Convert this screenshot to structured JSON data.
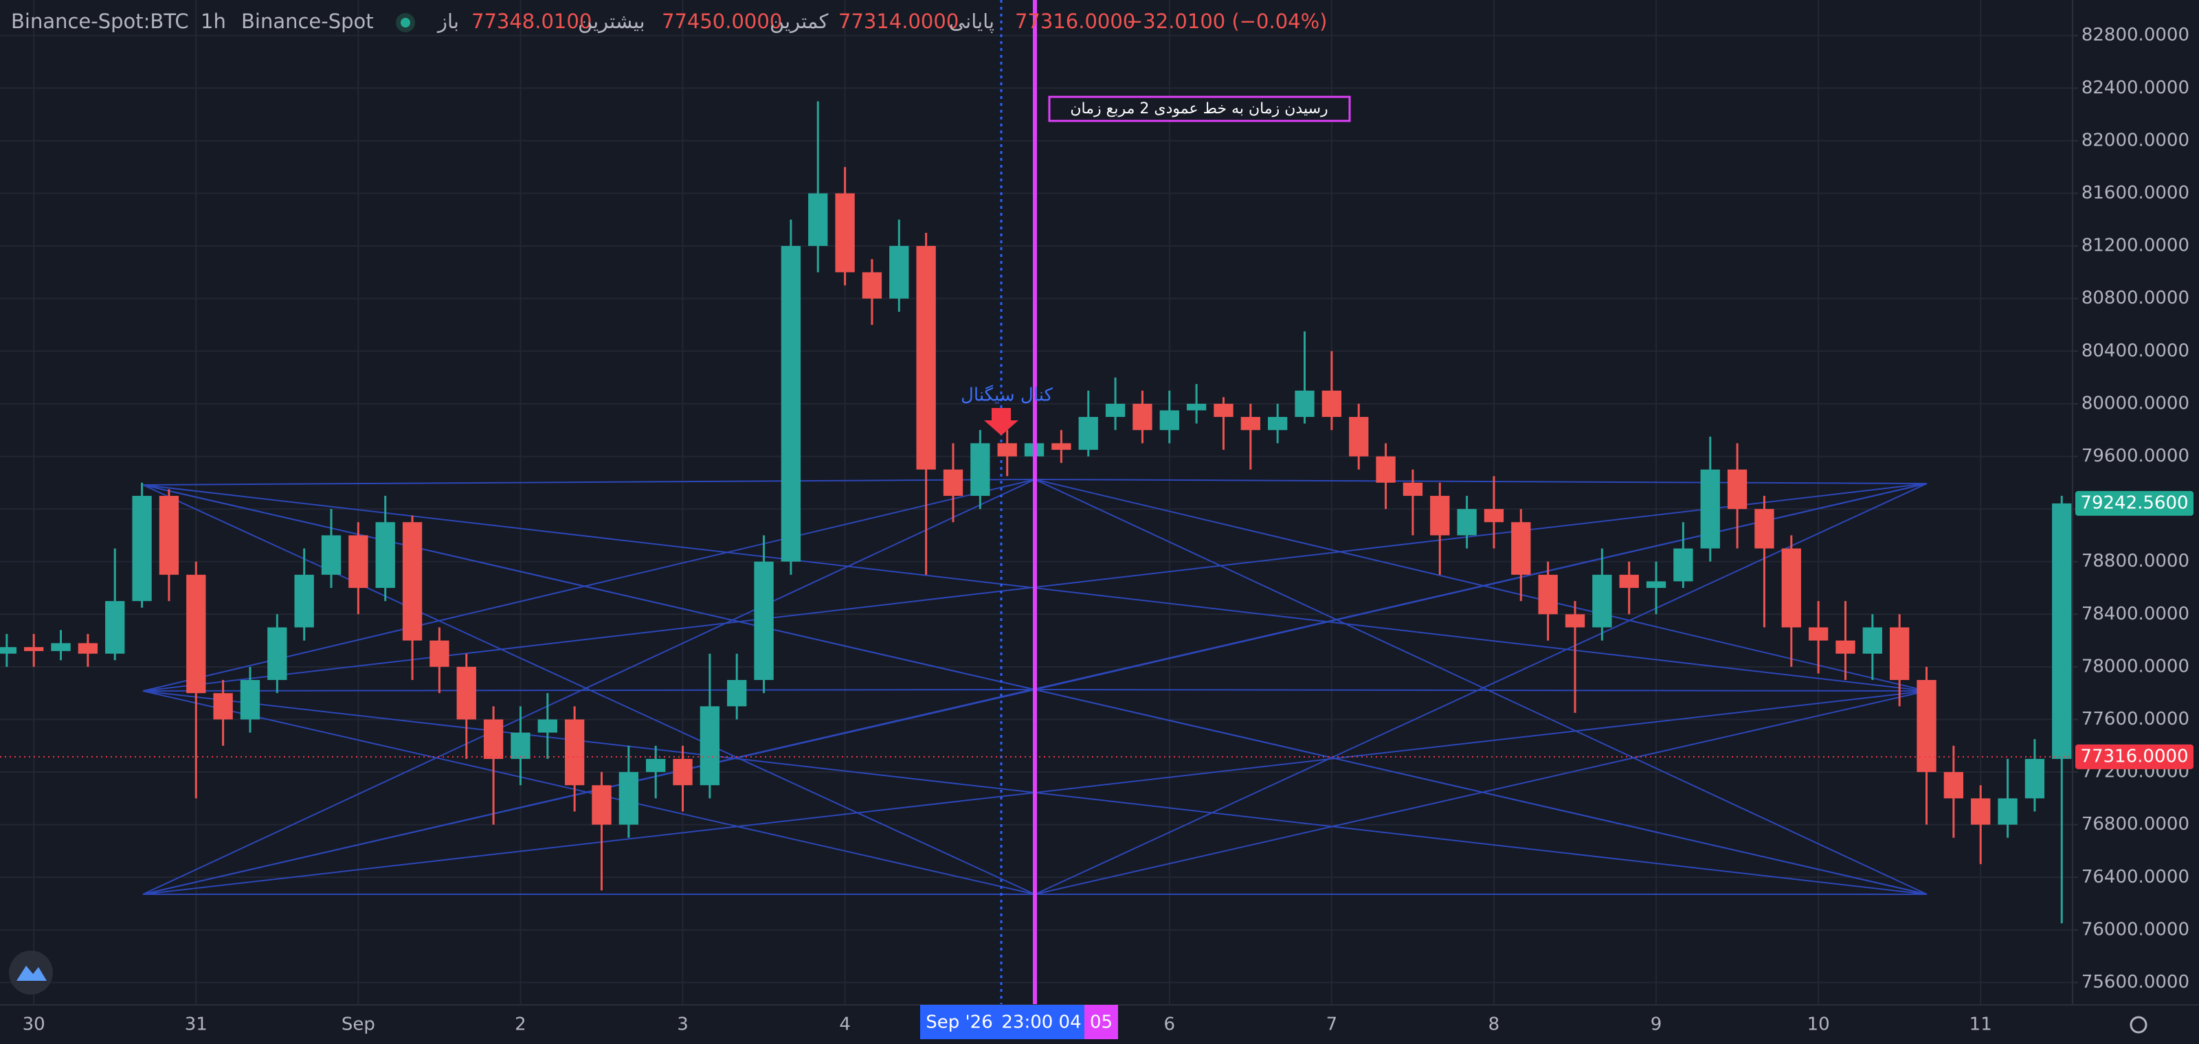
{
  "chart_data": {
    "type": "candlestick",
    "header": {
      "symbol": "Binance-Spot:BTC",
      "interval": "1h",
      "exchange": "Binance-Spot",
      "fields": [
        {
          "name": "باز",
          "value": {
            "value": 77348.01,
            "label": "77348.0100"
          }
        },
        {
          "name": "بیشترین",
          "value": {
            "value": 77450,
            "label": "77450.0000"
          }
        },
        {
          "name": "کمترین",
          "value": {
            "value": 77314,
            "label": "77314.0000"
          }
        },
        {
          "name": "پایانی",
          "value": {
            "value": 77316,
            "label": "77316.0000"
          }
        }
      ],
      "change": "−32.0100 (−0.04%)",
      "value_color": "#ef5350"
    },
    "up_color": "#26a69a",
    "down_color": "#ef5350",
    "series": [
      {
        "x": [
          -4,
          0,
          4,
          8,
          12,
          16,
          20,
          24,
          28,
          32,
          36,
          40,
          44,
          48,
          52,
          56,
          60,
          64,
          68,
          72,
          76,
          80,
          84,
          88,
          92,
          96,
          100,
          104,
          108,
          112,
          116,
          120,
          124,
          128,
          132,
          136,
          140,
          144,
          148,
          152,
          156,
          160,
          164,
          168,
          172,
          176,
          180,
          184,
          188,
          192,
          196,
          200,
          204,
          208,
          212,
          216,
          220,
          224,
          228,
          232,
          236,
          240,
          244,
          248,
          252,
          256,
          260,
          264,
          268,
          272,
          276,
          280,
          284,
          288,
          292,
          296,
          300
        ],
        "open": [
          78100,
          78150,
          78120,
          78180,
          78100,
          78500,
          79300,
          78700,
          77800,
          77600,
          77900,
          78300,
          78700,
          79000,
          78600,
          79100,
          78200,
          78000,
          77600,
          77300,
          77500,
          77600,
          77100,
          76800,
          77200,
          77300,
          77100,
          77700,
          77900,
          78800,
          81200,
          81600,
          81000,
          80800,
          81200,
          79500,
          79300,
          79700,
          79600,
          79700,
          79650,
          79900,
          80000,
          79800,
          79950,
          80000,
          79900,
          79800,
          79900,
          80100,
          79900,
          79600,
          79400,
          79300,
          79000,
          79200,
          79100,
          78700,
          78400,
          78300,
          78700,
          78600,
          78650,
          78900,
          79500,
          79200,
          78900,
          78300,
          78200,
          78100,
          78300,
          77900,
          77200,
          77000,
          76800,
          77000,
          77300
        ],
        "high": [
          78250,
          78250,
          78280,
          78250,
          78900,
          79400,
          79350,
          78800,
          77900,
          78000,
          78400,
          78900,
          79200,
          79100,
          79300,
          79150,
          78300,
          78100,
          77700,
          77700,
          77800,
          77700,
          77200,
          77400,
          77400,
          77400,
          78100,
          78100,
          79000,
          81400,
          82300,
          81800,
          81100,
          81400,
          81300,
          79700,
          79800,
          79800,
          79800,
          79800,
          80100,
          80200,
          80100,
          80100,
          80150,
          80050,
          80000,
          80000,
          80550,
          80400,
          80000,
          79700,
          79500,
          79400,
          79300,
          79450,
          79200,
          78800,
          78500,
          78900,
          78800,
          78800,
          79100,
          79750,
          79700,
          79300,
          79000,
          78500,
          78500,
          78400,
          78400,
          78000,
          77400,
          77100,
          77300,
          77450,
          79300
        ],
        "low": [
          78000,
          78000,
          78050,
          78000,
          78050,
          78450,
          78500,
          77000,
          77400,
          77500,
          77800,
          78200,
          78600,
          78400,
          78500,
          77900,
          77800,
          77300,
          76800,
          77100,
          77300,
          76900,
          76300,
          76700,
          77000,
          76900,
          77000,
          77600,
          77800,
          78700,
          81000,
          80900,
          80600,
          80700,
          78700,
          79100,
          79200,
          79450,
          79500,
          79550,
          79600,
          79800,
          79700,
          79700,
          79850,
          79650,
          79500,
          79700,
          79850,
          79800,
          79500,
          79200,
          79000,
          78700,
          78900,
          78900,
          78500,
          78200,
          77650,
          78200,
          78400,
          78400,
          78600,
          78800,
          78900,
          78300,
          78000,
          77950,
          77900,
          77900,
          77700,
          76800,
          76700,
          76500,
          76700,
          76900,
          76050
        ],
        "close": [
          78150,
          78120,
          78180,
          78100,
          78500,
          79300,
          78700,
          77800,
          77600,
          77900,
          78300,
          78700,
          79000,
          78600,
          79100,
          78200,
          78000,
          77600,
          77300,
          77500,
          77600,
          77100,
          76800,
          77200,
          77300,
          77100,
          77700,
          77900,
          78800,
          81200,
          81600,
          81000,
          80800,
          81200,
          79500,
          79300,
          79700,
          79600,
          79700,
          79650,
          79900,
          80000,
          79800,
          79950,
          80000,
          79900,
          79800,
          79900,
          80100,
          79900,
          79600,
          79400,
          79300,
          79000,
          79200,
          79100,
          78700,
          78400,
          78300,
          78700,
          78600,
          78650,
          78900,
          79500,
          79200,
          78900,
          78300,
          78200,
          78100,
          78300,
          77900,
          77200,
          77000,
          76800,
          77000,
          77300,
          79242.56
        ]
      }
    ],
    "xlim": [
      -5,
      301.6
    ],
    "xticks": [
      {
        "value": 0,
        "label": "30"
      },
      {
        "value": 24,
        "label": "31"
      },
      {
        "value": 48,
        "label": "Sep"
      },
      {
        "value": 72,
        "label": "2"
      },
      {
        "value": 96,
        "label": "3"
      },
      {
        "value": 120,
        "label": "4"
      },
      {
        "value": 168,
        "label": "6"
      },
      {
        "value": 192,
        "label": "7"
      },
      {
        "value": 216,
        "label": "8"
      },
      {
        "value": 240,
        "label": "9"
      },
      {
        "value": 264,
        "label": "10"
      },
      {
        "value": 288,
        "label": "11"
      }
    ],
    "ylim": [
      75430,
      83070
    ],
    "yticks": [
      {
        "value": 75600,
        "label": "75600.0000"
      },
      {
        "value": 76000,
        "label": "76000.0000"
      },
      {
        "value": 76400,
        "label": "76400.0000"
      },
      {
        "value": 76800,
        "label": "76800.0000"
      },
      {
        "value": 77200,
        "label": "77200.0000"
      },
      {
        "value": 77600,
        "label": "77600.0000"
      },
      {
        "value": 78000,
        "label": "78000.0000"
      },
      {
        "value": 78400,
        "label": "78400.0000"
      },
      {
        "value": 78800,
        "label": "78800.0000"
      },
      {
        "value": 79200,
        "label": "79200.0000"
      },
      {
        "value": 79600,
        "label": "79600.0000"
      },
      {
        "value": 80000,
        "label": "80000.0000"
      },
      {
        "value": 80400,
        "label": "80400.0000"
      },
      {
        "value": 80800,
        "label": "80800.0000"
      },
      {
        "value": 81200,
        "label": "81200.0000"
      },
      {
        "value": 81600,
        "label": "81600.0000"
      },
      {
        "value": 82000,
        "label": "82000.0000"
      },
      {
        "value": 82400,
        "label": "82400.0000"
      },
      {
        "value": 82800,
        "label": "82800.0000"
      }
    ],
    "grid": true,
    "last_price": {
      "value": 77316,
      "label": "77316.0000",
      "color": "#f23645"
    },
    "current_price": {
      "value": 79242.56,
      "label": "79242.5600",
      "color": "#22ab94"
    },
    "time_labels": [
      {
        "text": "Sep '26",
        "color": "#2962ff"
      },
      {
        "text": "23:00 04",
        "color": "#2962ff"
      },
      {
        "text": "05",
        "color": "#e040fb"
      }
    ],
    "annotations": [
      "رسیدن زمان به خط عمودی 2 مربع زمان",
      "کنال سیگنال"
    ]
  }
}
